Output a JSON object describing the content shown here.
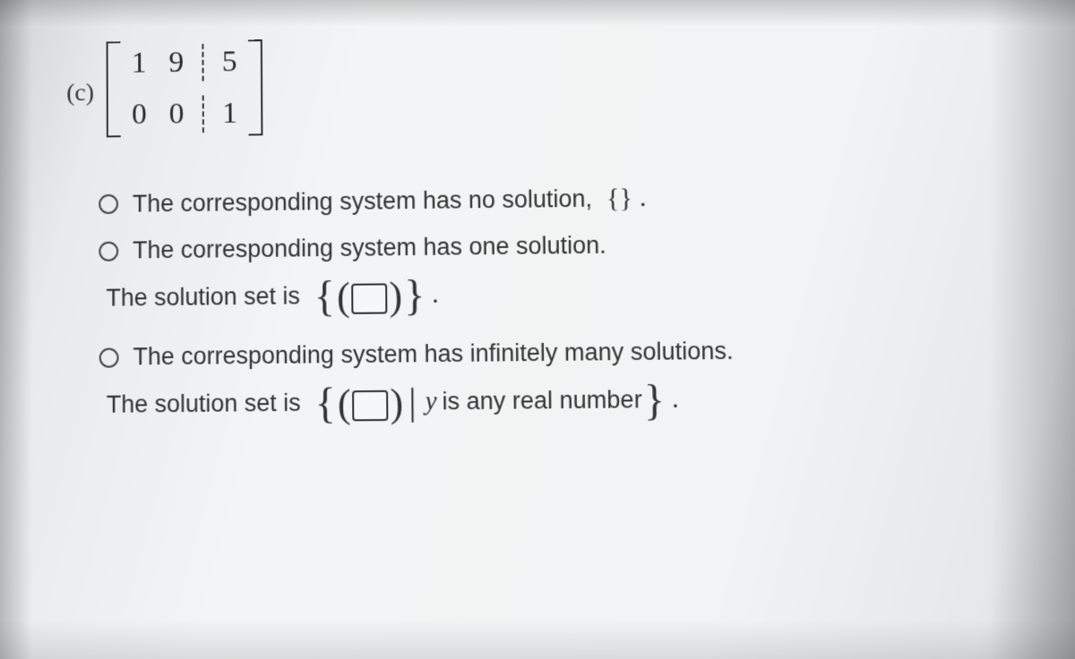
{
  "part_label": "(c)",
  "matrix": {
    "rows": [
      {
        "left": [
          "1",
          "9"
        ],
        "right": [
          "5"
        ]
      },
      {
        "left": [
          "0",
          "0"
        ],
        "right": [
          "1"
        ]
      }
    ],
    "bracket_color": "#2f2f2f",
    "cell_fontsize": 34,
    "divider_style": "dashed"
  },
  "options": {
    "no_solution": {
      "text": "The corresponding system has no solution,",
      "set_symbol": "{}"
    },
    "one_solution": {
      "text": "The corresponding system has one solution.",
      "sub_text": "The solution set is"
    },
    "inf_solutions": {
      "text": "The corresponding system has infinitely many solutions.",
      "sub_text": "The solution set is",
      "var": "y",
      "cond_text": "is any real number"
    }
  },
  "style": {
    "text_color": "#333333",
    "body_fontsize": 27,
    "brace_fontsize": 48,
    "radio_border": "#444444",
    "background_gradient": [
      "#d0d3d6",
      "#f3f4f5",
      "#c7cbce"
    ]
  }
}
